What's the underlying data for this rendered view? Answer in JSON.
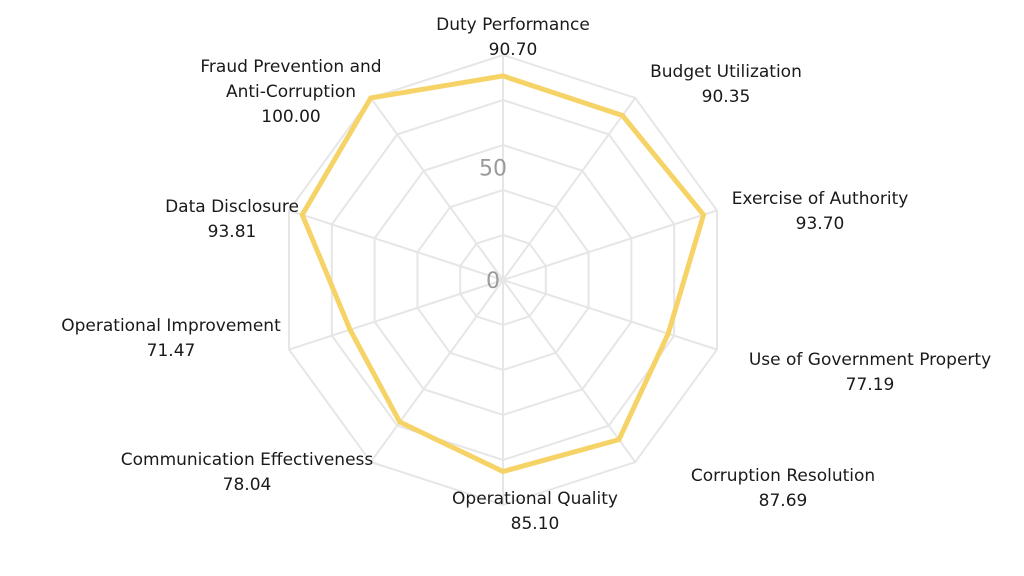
{
  "chart_data": {
    "type": "radar",
    "title": "",
    "categories": [
      "Duty Performance",
      "Budget Utilization",
      "Exercise of Authority",
      "Use of Government Property",
      "Corruption Resolution",
      "Operational Quality",
      "Communication Effectiveness",
      "Operational Improvement",
      "Data Disclosure",
      "Fraud Prevention and Anti-Corruption"
    ],
    "value_labels": [
      "90.70",
      "90.35",
      "93.70",
      "77.19",
      "87.69",
      "85.10",
      "78.04",
      "71.47",
      "93.81",
      "100.00"
    ],
    "series": [
      {
        "values": [
          90.7,
          90.35,
          93.7,
          77.19,
          87.69,
          85.1,
          78.04,
          71.47,
          93.81,
          100.0
        ],
        "color": "#f6d366"
      }
    ],
    "rlim": [
      0,
      100
    ],
    "ticks": [
      0,
      50
    ],
    "tick_labels": [
      "0",
      "50"
    ],
    "grid": true,
    "grid_color": "#e6e6e6",
    "legend": false
  }
}
